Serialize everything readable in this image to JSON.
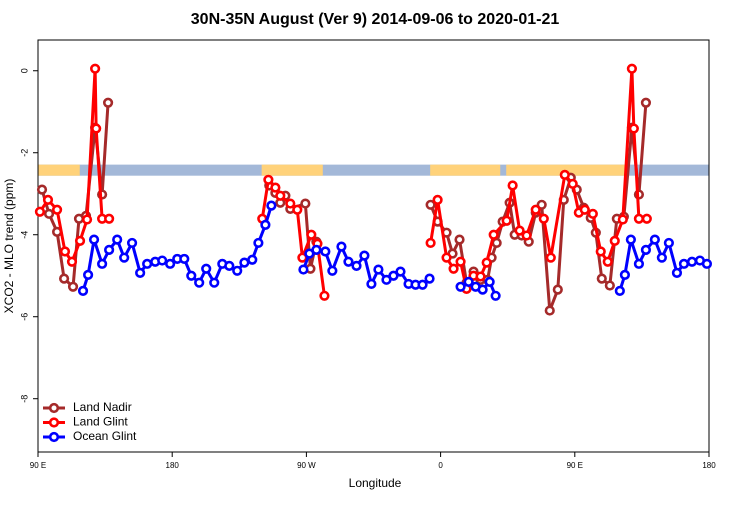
{
  "chart_data": {
    "type": "line",
    "title": "30N-35N August (Ver 9)   2014-09-06 to 2020-01-21",
    "x_label": "Longitude",
    "y_label": "XCO2 - MLO trend (ppm)",
    "xlim": [
      90,
      540
    ],
    "xticks": [
      {
        "value": 90,
        "label": "90 E"
      },
      {
        "value": 180,
        "label": "180"
      },
      {
        "value": 270,
        "label": "90 W"
      },
      {
        "value": 360,
        "label": "0"
      },
      {
        "value": 450,
        "label": "90 E"
      },
      {
        "value": 540,
        "label": "180"
      }
    ],
    "ylim": [
      -9.3,
      0.75
    ],
    "yticks": [
      0,
      -2,
      -4,
      -6,
      -8
    ],
    "grid": false,
    "legend": "bottom-left",
    "mask": {
      "ylim": [
        -2.56,
        -2.29
      ],
      "land_color": "#ffd27a",
      "ocean_color": "#a3b8d8",
      "land": [
        [
          90,
          118
        ],
        [
          240,
          281
        ],
        [
          353,
          400
        ],
        [
          404,
          484
        ]
      ]
    },
    "series": [
      {
        "name": "Land Nadir",
        "color": "#a52a2a",
        "x": [
          92.7,
          97.4,
          102.8,
          107.5,
          113.5,
          117.5,
          122.2,
          128.3,
          133.0,
          137.0,
          null,
          245.1,
          249.2,
          252.5,
          255.9,
          259.2,
          269.3,
          272.7,
          276.7,
          null,
          353.3,
          358.0,
          364.0,
          368.0,
          372.7,
          377.4,
          382.1,
          386.8,
          391.5,
          394.2,
          397.6,
          401.6,
          406.3,
          409.7,
          414.4,
          419.1,
          423.8,
          427.8,
          433.2,
          438.6,
          442.6,
          447.3,
          451.3,
          456.0,
          460.7,
          464.1,
          468.1,
          473.5,
          478.2,
          482.9,
          488.3,
          493.0,
          497.7
        ],
        "values": [
          -2.9,
          -3.49,
          -3.93,
          -5.07,
          -5.27,
          -3.61,
          -3.54,
          -1.39,
          -3.02,
          -0.78,
          null,
          -2.8,
          -2.98,
          -3.22,
          -3.05,
          -3.37,
          -3.24,
          -4.83,
          -4.17,
          null,
          -3.27,
          -3.68,
          -3.95,
          -4.46,
          -4.12,
          -5.17,
          -4.9,
          -5.1,
          -5.1,
          -4.56,
          -4.2,
          -3.68,
          -3.22,
          -4.0,
          -4.02,
          -4.17,
          -3.46,
          -3.27,
          -5.85,
          -5.34,
          -3.15,
          -2.61,
          -2.9,
          -3.34,
          -3.59,
          -3.95,
          -5.07,
          -5.24,
          -3.61,
          -3.56,
          -1.39,
          -3.02,
          -0.78
        ]
      },
      {
        "name": "Land Glint",
        "color": "#ff0000",
        "x": [
          91.3,
          96.7,
          102.8,
          108.1,
          112.8,
          118.2,
          122.9,
          128.3,
          129.0,
          133.0,
          137.7,
          null,
          240.4,
          244.5,
          249.2,
          252.5,
          259.2,
          263.9,
          267.3,
          273.3,
          277.4,
          282.1,
          null,
          353.3,
          358.0,
          364.0,
          368.7,
          373.4,
          377.4,
          382.1,
          386.8,
          390.9,
          395.6,
          404.3,
          408.3,
          413.0,
          417.7,
          423.8,
          429.2,
          433.9,
          443.3,
          448.6,
          452.7,
          456.7,
          462.1,
          467.4,
          472.1,
          476.8,
          482.2,
          488.3,
          489.6,
          493.0,
          498.3
        ],
        "values": [
          -3.44,
          -3.15,
          -3.39,
          -4.41,
          -4.66,
          -4.15,
          -3.63,
          0.05,
          -1.41,
          -3.61,
          -3.61,
          null,
          -3.61,
          -2.66,
          -2.85,
          -3.05,
          -3.24,
          -3.39,
          -4.56,
          -4.0,
          -4.22,
          -5.49,
          null,
          -4.2,
          -3.15,
          -4.56,
          -4.83,
          -4.66,
          -5.32,
          -5.0,
          -5.02,
          -4.68,
          -4.0,
          -3.66,
          -2.8,
          -3.9,
          -4.02,
          -3.39,
          -3.61,
          -4.56,
          -2.54,
          -2.76,
          -3.46,
          -3.39,
          -3.49,
          -4.41,
          -4.66,
          -4.15,
          -3.63,
          0.05,
          -1.41,
          -3.61,
          -3.61
        ]
      },
      {
        "name": "Ocean Glint",
        "color": "#0000ff",
        "x": [
          120.2,
          123.6,
          127.6,
          133.0,
          137.7,
          143.1,
          147.8,
          153.1,
          158.5,
          163.2,
          168.6,
          173.3,
          178.6,
          183.4,
          188.1,
          192.8,
          198.1,
          202.8,
          208.2,
          213.6,
          218.3,
          223.6,
          228.4,
          233.7,
          237.8,
          242.5,
          246.5,
          null,
          268.0,
          272.0,
          276.7,
          282.7,
          287.4,
          293.5,
          298.2,
          303.6,
          308.9,
          313.6,
          318.3,
          323.7,
          328.4,
          333.1,
          338.5,
          343.2,
          347.9,
          352.6,
          null,
          373.4,
          378.8,
          383.5,
          388.2,
          392.9,
          396.9,
          null,
          480.2,
          483.6,
          487.6,
          493.0,
          497.7,
          503.7,
          508.4,
          513.1,
          518.5,
          523.2,
          528.6,
          533.9,
          538.6
        ],
        "values": [
          -5.37,
          -4.98,
          -4.12,
          -4.71,
          -4.37,
          -4.12,
          -4.56,
          -4.2,
          -4.93,
          -4.71,
          -4.66,
          -4.63,
          -4.71,
          -4.59,
          -4.59,
          -5.0,
          -5.17,
          -4.83,
          -5.17,
          -4.71,
          -4.76,
          -4.88,
          -4.68,
          -4.61,
          -4.2,
          -3.76,
          -3.29,
          null,
          -4.85,
          -4.46,
          -4.37,
          -4.41,
          -4.88,
          -4.29,
          -4.66,
          -4.76,
          -4.51,
          -5.2,
          -4.85,
          -5.1,
          -5.0,
          -4.9,
          -5.2,
          -5.22,
          -5.22,
          -5.07,
          null,
          -5.27,
          -5.15,
          -5.27,
          -5.34,
          -5.15,
          -5.49,
          null,
          -5.37,
          -4.98,
          -4.12,
          -4.71,
          -4.37,
          -4.12,
          -4.56,
          -4.2,
          -4.93,
          -4.71,
          -4.66,
          -4.63,
          -4.71
        ]
      }
    ]
  }
}
